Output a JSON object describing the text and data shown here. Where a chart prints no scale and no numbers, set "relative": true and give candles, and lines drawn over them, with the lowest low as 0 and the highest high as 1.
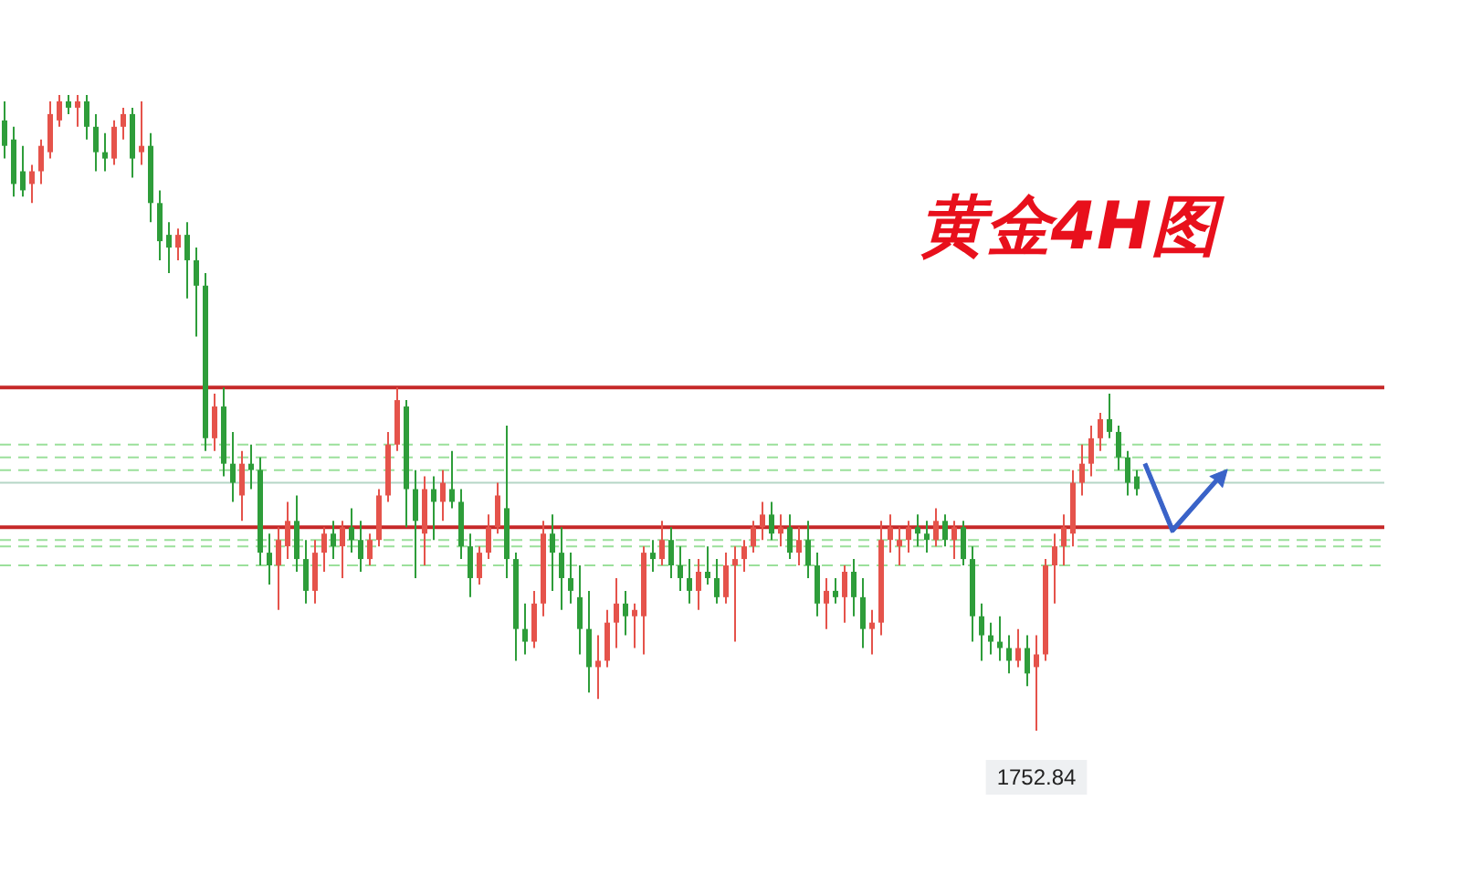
{
  "chart_data": {
    "type": "candlestick",
    "title": "黄金4H图",
    "relative": true,
    "categories": [
      null,
      null,
      null,
      null,
      null,
      null,
      null,
      null,
      null,
      null,
      null,
      null,
      null,
      null,
      null,
      null,
      null,
      null,
      null,
      null,
      null,
      null,
      null,
      null,
      null,
      null,
      null,
      null,
      null,
      null,
      null,
      null,
      null,
      null,
      null,
      null,
      null,
      null,
      null,
      null,
      null,
      null,
      null,
      null,
      null,
      null,
      null,
      null,
      null,
      null,
      null,
      null,
      null,
      null,
      null,
      null,
      null,
      null,
      null,
      null,
      null,
      null,
      null,
      null,
      null,
      null,
      null,
      null,
      null,
      null,
      null,
      null,
      null,
      null,
      null,
      null,
      null,
      null,
      null,
      null,
      null,
      null,
      null,
      null,
      null,
      null,
      null,
      null,
      null,
      null,
      null,
      null,
      null,
      null,
      null,
      null,
      null,
      null,
      null,
      null,
      null,
      null,
      null,
      null,
      null,
      null,
      null,
      null,
      null,
      null,
      null,
      null,
      null,
      null,
      null,
      null,
      null,
      null,
      null,
      null,
      null,
      null,
      null,
      null,
      null
    ],
    "ohlc": [
      [
        0.96,
        0.99,
        0.9,
        0.92
      ],
      [
        0.93,
        0.95,
        0.84,
        0.86
      ],
      [
        0.88,
        0.92,
        0.84,
        0.85
      ],
      [
        0.86,
        0.89,
        0.83,
        0.88
      ],
      [
        0.88,
        0.93,
        0.86,
        0.92
      ],
      [
        0.91,
        0.99,
        0.9,
        0.97
      ],
      [
        0.96,
        1.0,
        0.95,
        0.99
      ],
      [
        0.99,
        1.0,
        0.97,
        0.98
      ],
      [
        0.98,
        1.0,
        0.95,
        0.99
      ],
      [
        0.99,
        1.0,
        0.93,
        0.95
      ],
      [
        0.95,
        0.97,
        0.88,
        0.91
      ],
      [
        0.91,
        0.94,
        0.88,
        0.9
      ],
      [
        0.9,
        0.96,
        0.89,
        0.95
      ],
      [
        0.95,
        0.98,
        0.93,
        0.97
      ],
      [
        0.97,
        0.98,
        0.87,
        0.9
      ],
      [
        0.91,
        0.99,
        0.89,
        0.92
      ],
      [
        0.92,
        0.94,
        0.8,
        0.83
      ],
      [
        0.83,
        0.85,
        0.74,
        0.77
      ],
      [
        0.78,
        0.8,
        0.72,
        0.76
      ],
      [
        0.76,
        0.79,
        0.74,
        0.78
      ],
      [
        0.78,
        0.8,
        0.68,
        0.74
      ],
      [
        0.74,
        0.76,
        0.62,
        0.7
      ],
      [
        0.7,
        0.72,
        0.44,
        0.46
      ],
      [
        0.46,
        0.53,
        0.44,
        0.51
      ],
      [
        0.51,
        0.54,
        0.4,
        0.42
      ],
      [
        0.42,
        0.47,
        0.36,
        0.39
      ],
      [
        0.37,
        0.44,
        0.33,
        0.42
      ],
      [
        0.42,
        0.45,
        0.38,
        0.41
      ],
      [
        0.41,
        0.43,
        0.26,
        0.28
      ],
      [
        0.28,
        0.31,
        0.23,
        0.26
      ],
      [
        0.26,
        0.32,
        0.19,
        0.3
      ],
      [
        0.29,
        0.36,
        0.27,
        0.33
      ],
      [
        0.33,
        0.37,
        0.25,
        0.27
      ],
      [
        0.27,
        0.3,
        0.2,
        0.22
      ],
      [
        0.22,
        0.3,
        0.2,
        0.28
      ],
      [
        0.28,
        0.32,
        0.25,
        0.31
      ],
      [
        0.31,
        0.33,
        0.27,
        0.29
      ],
      [
        0.29,
        0.33,
        0.24,
        0.32
      ],
      [
        0.32,
        0.35,
        0.28,
        0.3
      ],
      [
        0.3,
        0.33,
        0.25,
        0.27
      ],
      [
        0.27,
        0.31,
        0.26,
        0.3
      ],
      [
        0.3,
        0.38,
        0.29,
        0.37
      ],
      [
        0.37,
        0.47,
        0.36,
        0.45
      ],
      [
        0.45,
        0.54,
        0.44,
        0.52
      ],
      [
        0.51,
        0.52,
        0.32,
        0.38
      ],
      [
        0.38,
        0.41,
        0.24,
        0.33
      ],
      [
        0.31,
        0.4,
        0.26,
        0.38
      ],
      [
        0.38,
        0.4,
        0.3,
        0.36
      ],
      [
        0.36,
        0.41,
        0.33,
        0.39
      ],
      [
        0.38,
        0.44,
        0.35,
        0.36
      ],
      [
        0.36,
        0.38,
        0.27,
        0.29
      ],
      [
        0.29,
        0.31,
        0.21,
        0.24
      ],
      [
        0.24,
        0.29,
        0.23,
        0.28
      ],
      [
        0.28,
        0.34,
        0.27,
        0.32
      ],
      [
        0.32,
        0.39,
        0.31,
        0.37
      ],
      [
        0.35,
        0.48,
        0.24,
        0.27
      ],
      [
        0.27,
        0.28,
        0.11,
        0.16
      ],
      [
        0.16,
        0.2,
        0.12,
        0.14
      ],
      [
        0.14,
        0.22,
        0.13,
        0.2
      ],
      [
        0.2,
        0.33,
        0.18,
        0.31
      ],
      [
        0.31,
        0.34,
        0.22,
        0.28
      ],
      [
        0.28,
        0.32,
        0.19,
        0.24
      ],
      [
        0.24,
        0.28,
        0.2,
        0.22
      ],
      [
        0.21,
        0.26,
        0.12,
        0.16
      ],
      [
        0.16,
        0.22,
        0.06,
        0.1
      ],
      [
        0.1,
        0.15,
        0.05,
        0.11
      ],
      [
        0.11,
        0.19,
        0.1,
        0.17
      ],
      [
        0.17,
        0.24,
        0.13,
        0.2
      ],
      [
        0.2,
        0.22,
        0.15,
        0.18
      ],
      [
        0.18,
        0.2,
        0.13,
        0.19
      ],
      [
        0.18,
        0.29,
        0.12,
        0.28
      ],
      [
        0.28,
        0.3,
        0.25,
        0.27
      ],
      [
        0.27,
        0.33,
        0.26,
        0.3
      ],
      [
        0.3,
        0.32,
        0.24,
        0.26
      ],
      [
        0.26,
        0.29,
        0.22,
        0.24
      ],
      [
        0.24,
        0.27,
        0.2,
        0.22
      ],
      [
        0.22,
        0.27,
        0.19,
        0.25
      ],
      [
        0.25,
        0.29,
        0.23,
        0.24
      ],
      [
        0.24,
        0.27,
        0.2,
        0.21
      ],
      [
        0.21,
        0.28,
        0.2,
        0.26
      ],
      [
        0.26,
        0.29,
        0.14,
        0.27
      ],
      [
        0.27,
        0.3,
        0.25,
        0.29
      ],
      [
        0.29,
        0.33,
        0.28,
        0.32
      ],
      [
        0.32,
        0.36,
        0.3,
        0.34
      ],
      [
        0.34,
        0.36,
        0.3,
        0.31
      ],
      [
        0.31,
        0.34,
        0.29,
        0.32
      ],
      [
        0.32,
        0.34,
        0.27,
        0.28
      ],
      [
        0.28,
        0.32,
        0.26,
        0.3
      ],
      [
        0.3,
        0.33,
        0.24,
        0.26
      ],
      [
        0.26,
        0.28,
        0.18,
        0.2
      ],
      [
        0.2,
        0.24,
        0.16,
        0.22
      ],
      [
        0.22,
        0.24,
        0.2,
        0.21
      ],
      [
        0.21,
        0.26,
        0.17,
        0.25
      ],
      [
        0.25,
        0.27,
        0.18,
        0.21
      ],
      [
        0.21,
        0.24,
        0.13,
        0.16
      ],
      [
        0.16,
        0.19,
        0.12,
        0.17
      ],
      [
        0.17,
        0.33,
        0.15,
        0.3
      ],
      [
        0.3,
        0.34,
        0.28,
        0.32
      ],
      [
        0.29,
        0.32,
        0.26,
        0.3
      ],
      [
        0.3,
        0.33,
        0.28,
        0.32
      ],
      [
        0.32,
        0.34,
        0.29,
        0.31
      ],
      [
        0.31,
        0.33,
        0.28,
        0.3
      ],
      [
        0.3,
        0.35,
        0.29,
        0.33
      ],
      [
        0.33,
        0.34,
        0.29,
        0.3
      ],
      [
        0.3,
        0.33,
        0.27,
        0.32
      ],
      [
        0.32,
        0.33,
        0.26,
        0.27
      ],
      [
        0.27,
        0.29,
        0.14,
        0.18
      ],
      [
        0.18,
        0.2,
        0.11,
        0.15
      ],
      [
        0.15,
        0.17,
        0.12,
        0.14
      ],
      [
        0.14,
        0.18,
        0.11,
        0.13
      ],
      [
        0.13,
        0.15,
        0.09,
        0.11
      ],
      [
        0.11,
        0.16,
        0.1,
        0.13
      ],
      [
        0.13,
        0.15,
        0.07,
        0.09
      ],
      [
        0.1,
        0.15,
        0.0,
        0.12
      ],
      [
        0.12,
        0.27,
        0.11,
        0.26
      ],
      [
        0.26,
        0.31,
        0.2,
        0.29
      ],
      [
        0.29,
        0.34,
        0.26,
        0.32
      ],
      [
        0.31,
        0.41,
        0.29,
        0.39
      ],
      [
        0.39,
        0.45,
        0.37,
        0.42
      ],
      [
        0.42,
        0.48,
        0.4,
        0.46
      ],
      [
        0.46,
        0.5,
        0.44,
        0.49
      ],
      [
        0.49,
        0.53,
        0.46,
        0.47
      ],
      [
        0.47,
        0.48,
        0.41,
        0.43
      ],
      [
        0.43,
        0.44,
        0.37,
        0.39
      ],
      [
        0.4,
        0.41,
        0.37,
        0.38
      ]
    ],
    "ref_lines": [
      {
        "axis": "y",
        "value": 0.54,
        "color": "#c62828",
        "line_style": "solid"
      },
      {
        "axis": "y",
        "value": 0.32,
        "color": "#c62828",
        "line_style": "solid"
      },
      {
        "axis": "y",
        "value": 0.45,
        "color": "#9be09b",
        "line_style": "dashed"
      },
      {
        "axis": "y",
        "value": 0.43,
        "color": "#9be09b",
        "line_style": "dashed"
      },
      {
        "axis": "y",
        "value": 0.41,
        "color": "#9be09b",
        "line_style": "dashed"
      },
      {
        "axis": "y",
        "value": 0.39,
        "color": "#b5d6c6",
        "line_style": "solid"
      },
      {
        "axis": "y",
        "value": 0.3,
        "color": "#9be09b",
        "line_style": "dashed"
      },
      {
        "axis": "y",
        "value": 0.29,
        "color": "#9be09b",
        "line_style": "dashed"
      },
      {
        "axis": "y",
        "value": 0.26,
        "color": "#9be09b",
        "line_style": "dashed"
      }
    ],
    "annotations": [
      "1752.84"
    ]
  }
}
